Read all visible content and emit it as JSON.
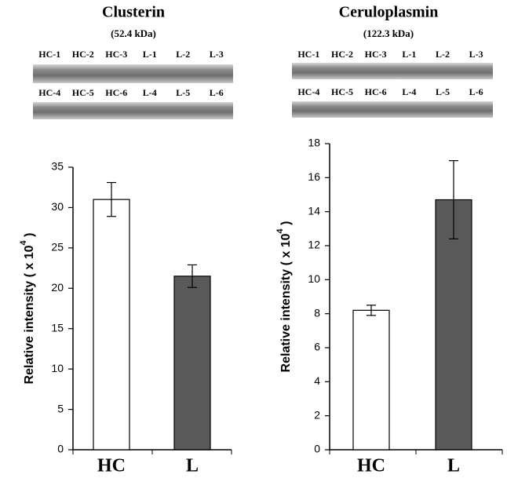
{
  "chart_data": [
    {
      "type": "bar",
      "title": "Clusterin",
      "subtitle": "(52.4 kDa)",
      "lanes": [
        [
          "HC-1",
          "HC-2",
          "HC-3",
          "L-1",
          "L-2",
          "L-3"
        ],
        [
          "HC-4",
          "HC-5",
          "HC-6",
          "L-4",
          "L-5",
          "L-6"
        ]
      ],
      "ylabel": [
        "Relative intensity ( x 10",
        "4",
        " )"
      ],
      "categories": [
        "HC",
        "L"
      ],
      "values": [
        31,
        21.5
      ],
      "errors": [
        2.1,
        1.4
      ],
      "colors": [
        "#ffffff",
        "#595959"
      ],
      "ylim": [
        0,
        35
      ],
      "yticks": [
        0,
        5,
        10,
        15,
        20,
        25,
        30,
        35
      ]
    },
    {
      "type": "bar",
      "title": "Ceruloplasmin",
      "subtitle": "(122.3 kDa)",
      "lanes": [
        [
          "HC-1",
          "HC-2",
          "HC-3",
          "L-1",
          "L-2",
          "L-3"
        ],
        [
          "HC-4",
          "HC-5",
          "HC-6",
          "L-4",
          "L-5",
          "L-6"
        ]
      ],
      "ylabel": [
        "Relative intensity ( x 10",
        "4",
        " )"
      ],
      "categories": [
        "HC",
        "L"
      ],
      "values": [
        8.2,
        14.7
      ],
      "errors": [
        0.3,
        2.3
      ],
      "colors": [
        "#ffffff",
        "#595959"
      ],
      "ylim": [
        0,
        18
      ],
      "yticks": [
        0,
        2,
        4,
        6,
        8,
        10,
        12,
        14,
        16,
        18
      ]
    }
  ]
}
